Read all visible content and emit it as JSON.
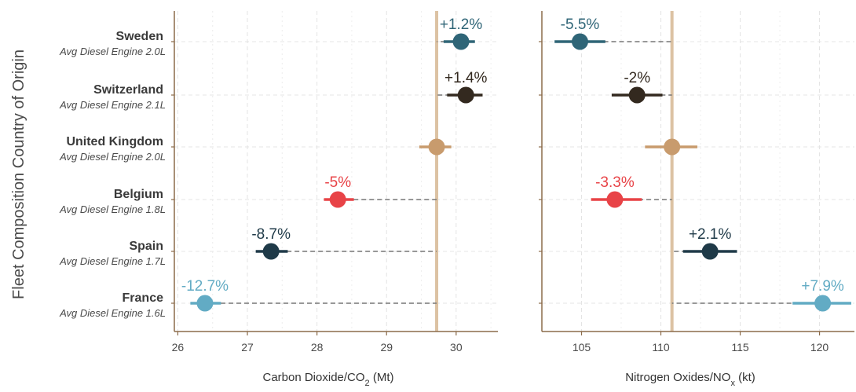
{
  "chart_data": {
    "type": "dot-interval",
    "ylabel": "Fleet Composition Country of Origin",
    "categories": [
      {
        "country": "Sweden",
        "engine": "Avg Diesel  Engine 2.0L",
        "color": "#2f6577"
      },
      {
        "country": "Switzerland",
        "engine": "Avg Diesel  Engine 2.1L",
        "color": "#33291f"
      },
      {
        "country": "United  Kingdom",
        "engine": "Avg Diesel  Engine 2.0L",
        "color": "#c89b6d"
      },
      {
        "country": "Belgium",
        "engine": "Avg Diesel  Engine 1.8L",
        "color": "#e84347"
      },
      {
        "country": "Spain",
        "engine": "Avg Diesel  Engine 1.7L",
        "color": "#1f3a48"
      },
      {
        "country": "France",
        "engine": "Avg Diesel  Engine 1.6L",
        "color": "#62abc4"
      }
    ],
    "panels": [
      {
        "name": "co2",
        "xlabel_main": "Carbon Dioxide/CO",
        "xlabel_sub": "2",
        "xlabel_unit": " (Mt)",
        "xlim": [
          25.95,
          30.6
        ],
        "xticks": [
          26,
          27,
          28,
          29,
          30
        ],
        "reference": 29.72,
        "points": [
          {
            "value": 30.07,
            "low": 29.82,
            "high": 30.27,
            "label": "+1.2%"
          },
          {
            "value": 30.14,
            "low": 29.87,
            "high": 30.38,
            "label": "+1.4%"
          },
          {
            "value": 29.72,
            "low": 29.47,
            "high": 29.93,
            "label": ""
          },
          {
            "value": 28.3,
            "low": 28.1,
            "high": 28.53,
            "label": "-5%"
          },
          {
            "value": 27.34,
            "low": 27.12,
            "high": 27.58,
            "label": "-8.7%"
          },
          {
            "value": 26.39,
            "low": 26.18,
            "high": 26.62,
            "label": "-12.7%"
          }
        ]
      },
      {
        "name": "nox",
        "xlabel_main": "Nitrogen Oxides/NO",
        "xlabel_sub": "x",
        "xlabel_unit": " (kt)",
        "xlim": [
          102.5,
          122.2
        ],
        "xticks": [
          105,
          110,
          115,
          120
        ],
        "reference": 110.7,
        "points": [
          {
            "value": 104.9,
            "low": 103.3,
            "high": 106.5,
            "label": "-5.5%"
          },
          {
            "value": 108.5,
            "low": 106.9,
            "high": 110.1,
            "label": "-2%"
          },
          {
            "value": 110.7,
            "low": 109.0,
            "high": 112.3,
            "label": ""
          },
          {
            "value": 107.1,
            "low": 105.6,
            "high": 108.8,
            "label": "-3.3%"
          },
          {
            "value": 113.1,
            "low": 111.4,
            "high": 114.8,
            "label": "+2.1%"
          },
          {
            "value": 120.2,
            "low": 118.3,
            "high": 122.0,
            "label": "+7.9%"
          }
        ]
      }
    ]
  }
}
